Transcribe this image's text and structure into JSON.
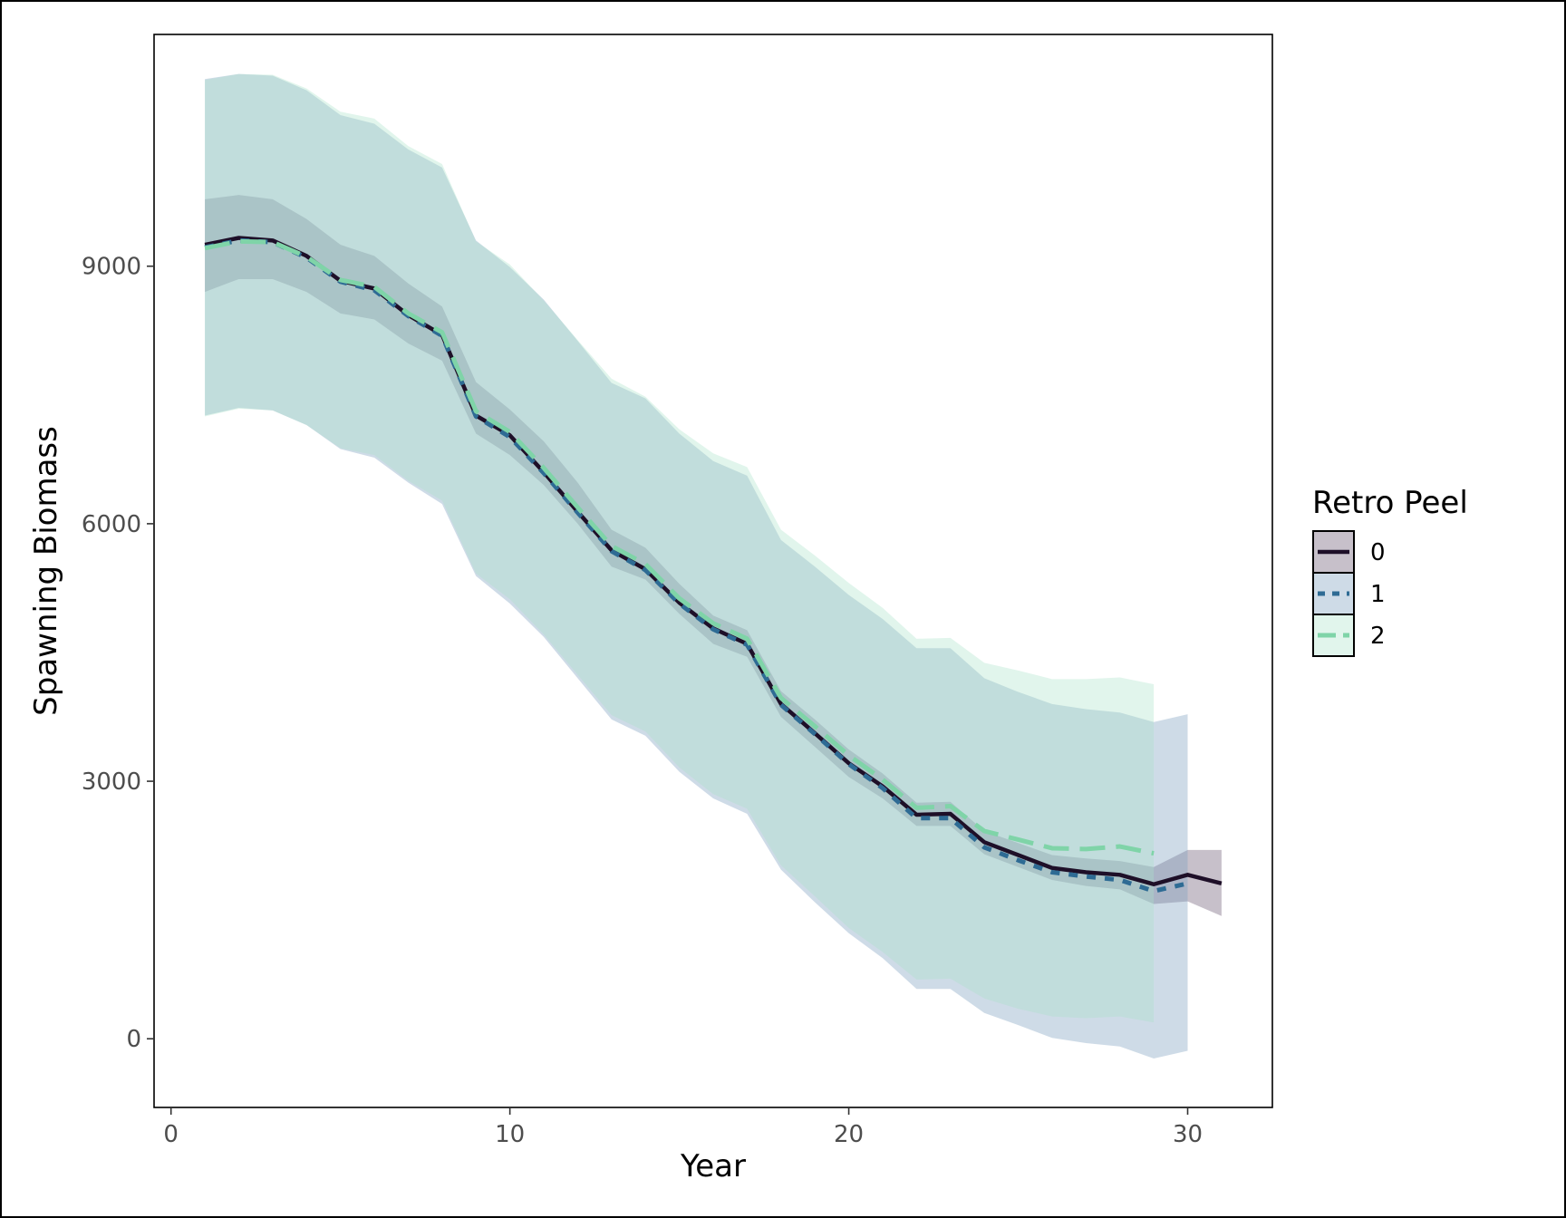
{
  "chart_data": {
    "type": "line",
    "xlabel": "Year",
    "ylabel": "Spawning Biomass",
    "xlim": [
      -0.5,
      32.5
    ],
    "ylim": [
      -800,
      11700
    ],
    "xticks": [
      0,
      10,
      20,
      30
    ],
    "yticks": [
      0,
      3000,
      6000,
      9000
    ],
    "grid": false,
    "legend": {
      "title": "Retro Peel",
      "position": "right"
    },
    "series": [
      {
        "name": "0",
        "color": "#1e0f28",
        "band_color": "#5e4a66",
        "band_opacity": 0.35,
        "dash": "solid",
        "x": [
          1,
          2,
          3,
          4,
          5,
          6,
          7,
          8,
          9,
          10,
          11,
          12,
          13,
          14,
          15,
          16,
          17,
          18,
          19,
          20,
          21,
          22,
          23,
          24,
          25,
          26,
          27,
          28,
          29,
          30,
          31
        ],
        "y": [
          9250,
          9330,
          9300,
          9120,
          8830,
          8740,
          8430,
          8200,
          7260,
          7030,
          6600,
          6140,
          5690,
          5470,
          5080,
          4780,
          4600,
          3900,
          3560,
          3210,
          2940,
          2610,
          2620,
          2290,
          2140,
          1990,
          1940,
          1910,
          1800,
          1910,
          1810
        ],
        "lower": [
          8700,
          8850,
          8850,
          8700,
          8450,
          8380,
          8100,
          7900,
          7050,
          6800,
          6450,
          6000,
          5500,
          5350,
          4950,
          4600,
          4450,
          3750,
          3400,
          3050,
          2800,
          2480,
          2480,
          2150,
          2000,
          1850,
          1780,
          1740,
          1570,
          1600,
          1430
        ],
        "upper": [
          9780,
          9830,
          9780,
          9550,
          9250,
          9120,
          8800,
          8530,
          7650,
          7330,
          6960,
          6480,
          5930,
          5720,
          5300,
          4930,
          4760,
          4050,
          3720,
          3370,
          3090,
          2750,
          2760,
          2420,
          2280,
          2140,
          2100,
          2070,
          2000,
          2200,
          2200
        ]
      },
      {
        "name": "1",
        "color": "#2e6b94",
        "band_color": "#7fa0c0",
        "band_opacity": 0.38,
        "dash": "10,10",
        "x": [
          1,
          2,
          3,
          4,
          5,
          6,
          7,
          8,
          9,
          10,
          11,
          12,
          13,
          14,
          15,
          16,
          17,
          18,
          19,
          20,
          21,
          22,
          23,
          24,
          25,
          26,
          27,
          28,
          29,
          30
        ],
        "y": [
          9220,
          9300,
          9280,
          9100,
          8820,
          8720,
          8420,
          8190,
          7250,
          7010,
          6590,
          6130,
          5680,
          5460,
          5070,
          4770,
          4590,
          3890,
          3550,
          3200,
          2920,
          2570,
          2570,
          2230,
          2080,
          1940,
          1890,
          1850,
          1720,
          1810
        ],
        "lower": [
          7260,
          7350,
          7320,
          7150,
          6870,
          6770,
          6480,
          6230,
          5390,
          5070,
          4680,
          4200,
          3720,
          3530,
          3110,
          2800,
          2620,
          1970,
          1590,
          1230,
          940,
          580,
          580,
          300,
          160,
          10,
          -50,
          -90,
          -230,
          -140
        ],
        "upper": [
          11180,
          11240,
          11220,
          11050,
          10760,
          10660,
          10360,
          10150,
          9300,
          8990,
          8610,
          8130,
          7640,
          7460,
          7050,
          6730,
          6560,
          5810,
          5500,
          5170,
          4890,
          4550,
          4550,
          4200,
          4040,
          3900,
          3840,
          3800,
          3690,
          3780
        ]
      },
      {
        "name": "2",
        "color": "#7fd4a8",
        "band_color": "#a8e3c8",
        "band_opacity": 0.35,
        "dash": "28,12",
        "x": [
          1,
          2,
          3,
          4,
          5,
          6,
          7,
          8,
          9,
          10,
          11,
          12,
          13,
          14,
          15,
          16,
          17,
          18,
          19,
          20,
          21,
          22,
          23,
          24,
          25,
          26,
          27,
          28,
          29
        ],
        "y": [
          9210,
          9290,
          9280,
          9110,
          8840,
          8760,
          8450,
          8230,
          7310,
          7070,
          6650,
          6190,
          5740,
          5530,
          5130,
          4840,
          4660,
          3970,
          3640,
          3300,
          3020,
          2690,
          2710,
          2420,
          2320,
          2220,
          2210,
          2240,
          2160
        ],
        "lower": [
          7250,
          7340,
          7320,
          7150,
          6880,
          6800,
          6500,
          6270,
          5420,
          5120,
          4710,
          4240,
          3770,
          3580,
          3160,
          2850,
          2680,
          2020,
          1660,
          1290,
          1010,
          690,
          700,
          470,
          350,
          260,
          240,
          260,
          190
        ],
        "upper": [
          11170,
          11240,
          11230,
          11070,
          10800,
          10720,
          10400,
          10190,
          9290,
          9020,
          8600,
          8140,
          7690,
          7480,
          7100,
          6820,
          6660,
          5930,
          5630,
          5310,
          5020,
          4660,
          4670,
          4380,
          4290,
          4190,
          4190,
          4210,
          4130
        ]
      }
    ]
  }
}
